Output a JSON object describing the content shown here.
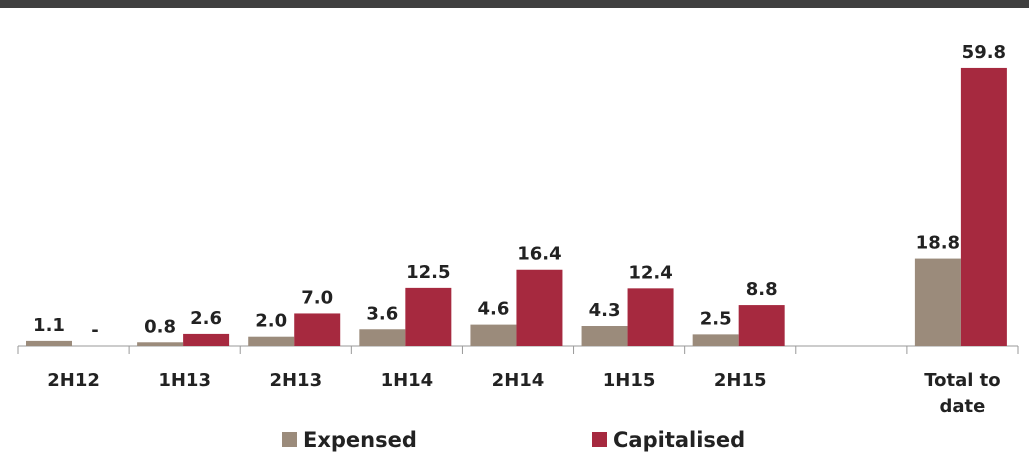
{
  "chart_data": {
    "type": "bar",
    "categories": [
      "2H12",
      "1H13",
      "2H13",
      "1H14",
      "2H14",
      "1H15",
      "2H15",
      null,
      "Total to date"
    ],
    "series": [
      {
        "name": "Expensed",
        "color": "#9b8b7b",
        "values": [
          1.1,
          0.8,
          2.0,
          3.6,
          4.6,
          4.3,
          2.5,
          null,
          18.8
        ],
        "value_labels": [
          "1.1",
          "0.8",
          "2.0",
          "3.6",
          "4.6",
          "4.3",
          "2.5",
          null,
          "18.8"
        ]
      },
      {
        "name": "Capitalised",
        "color": "#a6293f",
        "values": [
          0,
          2.6,
          7.0,
          12.5,
          16.4,
          12.4,
          8.8,
          null,
          59.8
        ],
        "value_labels": [
          "-",
          "2.6",
          "7.0",
          "12.5",
          "16.4",
          "12.4",
          "8.8",
          null,
          "59.8"
        ]
      }
    ],
    "ylim": [
      0,
      60
    ],
    "legend": "bottom"
  }
}
